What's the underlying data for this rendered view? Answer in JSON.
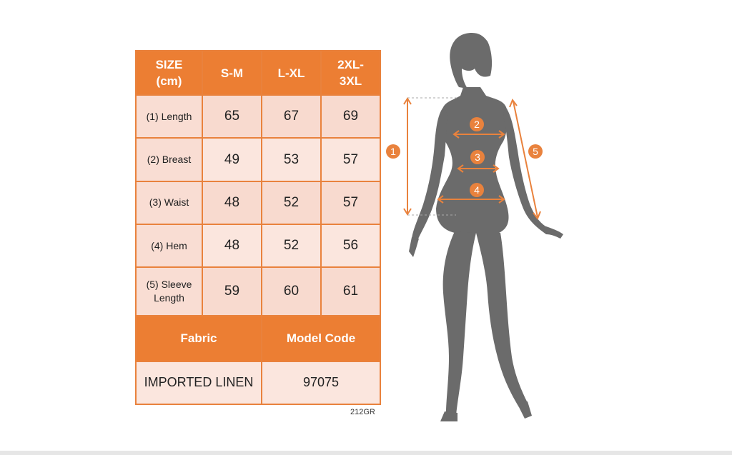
{
  "table": {
    "header": {
      "size_line1": "SIZE",
      "size_line2": "(cm)",
      "col1": "S-M",
      "col2": "L-XL",
      "col3_line1": "2XL-",
      "col3_line2": "3XL"
    },
    "rows": [
      {
        "label": "(1) Length",
        "values": [
          "65",
          "67",
          "69"
        ]
      },
      {
        "label": "(2) Breast",
        "values": [
          "49",
          "53",
          "57"
        ]
      },
      {
        "label": "(3) Waist",
        "values": [
          "48",
          "52",
          "57"
        ]
      },
      {
        "label": "(4) Hem",
        "values": [
          "48",
          "52",
          "56"
        ]
      },
      {
        "label_line1": "(5) Sleeve",
        "label_line2": "Length",
        "values": [
          "59",
          "60",
          "61"
        ]
      }
    ],
    "footer": {
      "fabric_label": "Fabric",
      "model_code_label": "Model Code",
      "fabric_value": "IMPORTED LINEN",
      "model_code_value": "97075"
    }
  },
  "code_tag": "212GR",
  "figure": {
    "markers": [
      "1",
      "2",
      "3",
      "4",
      "5"
    ]
  },
  "colors": {
    "accent": "#ec7e33",
    "cell_light": "#fbe6de",
    "cell_mid": "#f8dacf",
    "silhouette": "#6b6b6b"
  }
}
